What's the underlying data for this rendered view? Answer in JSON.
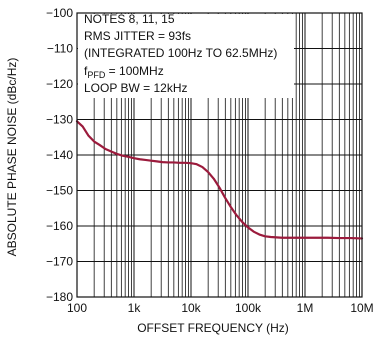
{
  "chart_data": {
    "type": "line",
    "title": "",
    "xlabel": "OFFSET FREQUENCY (Hz)",
    "ylabel": "ABSOLUTE PHASE NOISE (dBc/Hz)",
    "xscale": "log",
    "xlim": [
      100,
      10000000
    ],
    "ylim": [
      -180,
      -100
    ],
    "x_ticks": [
      100,
      1000,
      10000,
      100000,
      1000000,
      10000000
    ],
    "x_tick_labels": [
      "100",
      "1k",
      "10k",
      "100k",
      "1M",
      "10M"
    ],
    "y_ticks": [
      -180,
      -170,
      -160,
      -150,
      -140,
      -130,
      -120,
      -110,
      -100
    ],
    "y_tick_labels": [
      "−180",
      "−170",
      "−160",
      "−150",
      "−140",
      "−130",
      "−120",
      "−110",
      "−100"
    ],
    "grid": true,
    "annotations": {
      "notes": "NOTES 8, 11, 15",
      "rms_jitter": "RMS JITTER = 93fs",
      "integrated": "(INTEGRATED 100Hz TO 62.5MHz)",
      "fpfd_prefix": "f",
      "fpfd_subscript": "PFD",
      "fpfd_value": " = 100MHz",
      "loop_bw": "LOOP BW = 12kHz"
    },
    "series": [
      {
        "color": "#9b1b3c",
        "points": [
          [
            100,
            -130.5
          ],
          [
            126,
            -132
          ],
          [
            158,
            -134.5
          ],
          [
            200,
            -136.2
          ],
          [
            251,
            -137.2
          ],
          [
            316,
            -138.3
          ],
          [
            398,
            -139
          ],
          [
            501,
            -139.7
          ],
          [
            631,
            -140.2
          ],
          [
            794,
            -140.5
          ],
          [
            1000,
            -140.9
          ],
          [
            1259,
            -141.2
          ],
          [
            1585,
            -141.4
          ],
          [
            1995,
            -141.6
          ],
          [
            2512,
            -141.8
          ],
          [
            3162,
            -142
          ],
          [
            3981,
            -142.1
          ],
          [
            5012,
            -142.1
          ],
          [
            6310,
            -142.2
          ],
          [
            7943,
            -142.2
          ],
          [
            10000,
            -142.3
          ],
          [
            12589,
            -142.6
          ],
          [
            15849,
            -143.4
          ],
          [
            19953,
            -144.8
          ],
          [
            25119,
            -146.7
          ],
          [
            31623,
            -149.2
          ],
          [
            39811,
            -152.1
          ],
          [
            50119,
            -154.7
          ],
          [
            63096,
            -157
          ],
          [
            79433,
            -158.9
          ],
          [
            100000,
            -160.4
          ],
          [
            125893,
            -161.6
          ],
          [
            158489,
            -162.4
          ],
          [
            199526,
            -162.9
          ],
          [
            251189,
            -163.1
          ],
          [
            316228,
            -163.2
          ],
          [
            398107,
            -163.3
          ],
          [
            501187,
            -163.3
          ],
          [
            630957,
            -163.3
          ],
          [
            794328,
            -163.3
          ],
          [
            1000000,
            -163.3
          ],
          [
            1584893,
            -163.3
          ],
          [
            2511886,
            -163.3
          ],
          [
            3981072,
            -163.4
          ],
          [
            6309573,
            -163.4
          ],
          [
            10000000,
            -163.5
          ]
        ]
      }
    ]
  }
}
